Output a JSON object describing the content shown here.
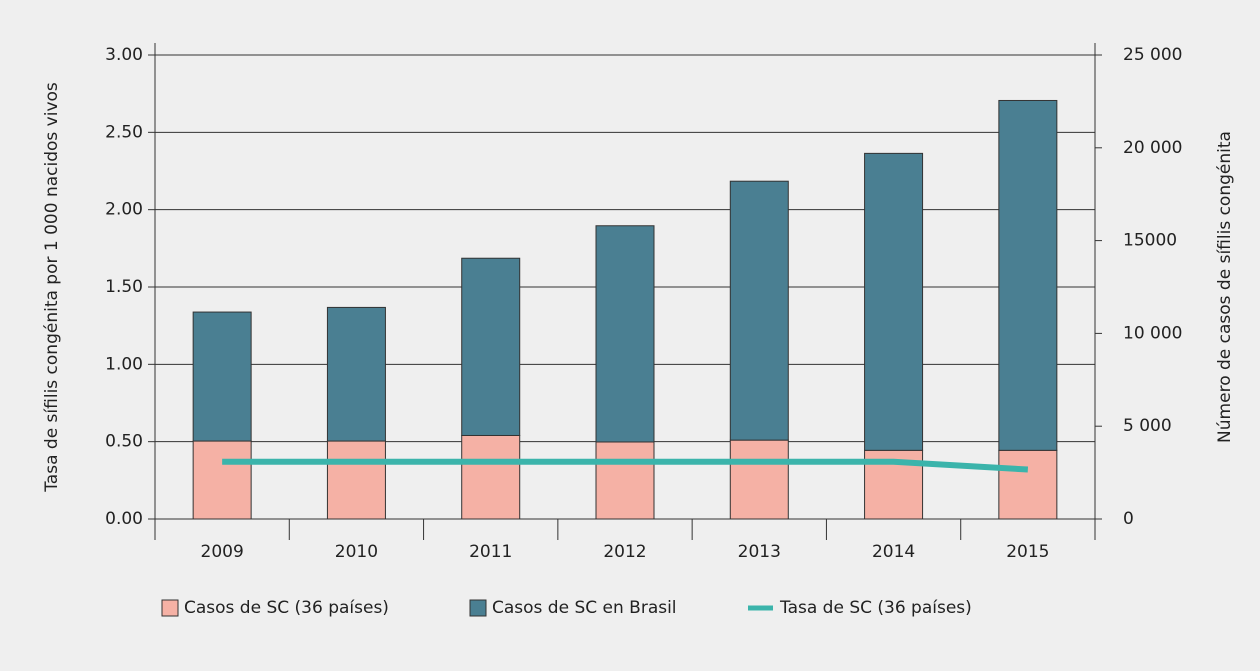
{
  "chart_data": {
    "type": "bar",
    "y_label": "Tasa de sífilis congénita por 1 000 nacidos vivos",
    "y2_label": "Número de casos de sífilis congénita",
    "categories": [
      "2009",
      "2010",
      "2011",
      "2012",
      "2013",
      "2014",
      "2015"
    ],
    "stacked": true,
    "series": [
      {
        "name": "Casos de SC (36 países)",
        "color": "#f5b1a5",
        "axis": "y2",
        "values": [
          4200,
          4200,
          4500,
          4150,
          4250,
          3700,
          3700
        ]
      },
      {
        "name": "Casos de SC en Brasil",
        "color": "#4a7f92",
        "axis": "y2",
        "values": [
          6950,
          7200,
          9550,
          11650,
          13950,
          16000,
          18850
        ]
      },
      {
        "name": "Tasa de SC (36 países)",
        "color": "#3bb4ab",
        "type": "line",
        "values": [
          0.37,
          0.37,
          0.37,
          0.37,
          0.37,
          0.37,
          0.32
        ]
      }
    ],
    "ylim": [
      0,
      3
    ],
    "yticks": [
      {
        "value": 0,
        "label": "0.00"
      },
      {
        "value": 0.5,
        "label": "0.50"
      },
      {
        "value": 1,
        "label": "1.00"
      },
      {
        "value": 1.5,
        "label": "1.50"
      },
      {
        "value": 2,
        "label": "2.00"
      },
      {
        "value": 2.5,
        "label": "2.50"
      },
      {
        "value": 3,
        "label": "3.00"
      }
    ],
    "y2lim": [
      0,
      25000
    ],
    "y2ticks": [
      0,
      {
        "value": 5000,
        "label": "5 000"
      },
      {
        "value": 10000,
        "label": "10 000"
      },
      15000,
      {
        "value": 20000,
        "label": "20 000"
      },
      {
        "value": 25000,
        "label": "25 000"
      }
    ],
    "grid": true
  }
}
